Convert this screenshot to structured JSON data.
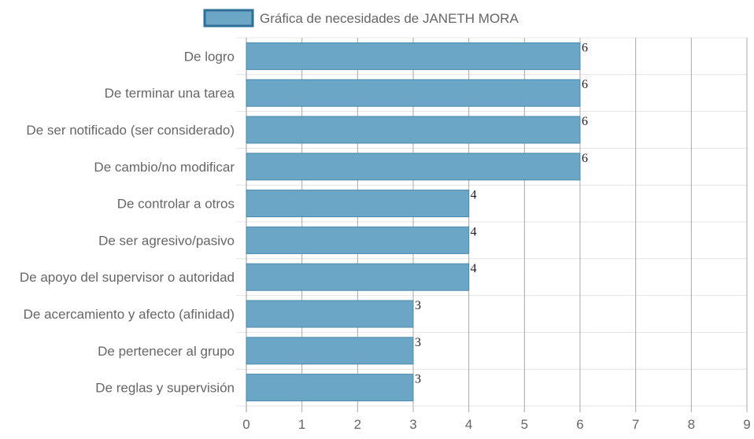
{
  "chart_data": {
    "type": "bar",
    "orientation": "horizontal",
    "categories": [
      "De logro",
      "De terminar una tarea",
      "De ser notificado (ser considerado)",
      "De cambio/no modificar",
      "De controlar a otros",
      "De ser agresivo/pasivo",
      "De apoyo del supervisor o autoridad",
      "De acercamiento y afecto (afinidad)",
      "De pertenecer al grupo",
      "De reglas y supervisión"
    ],
    "series": [
      {
        "name": "Gráfica de necesidades de JANETH MORA",
        "values": [
          6,
          6,
          6,
          6,
          4,
          4,
          4,
          3,
          3,
          3
        ]
      }
    ],
    "xlim": [
      0,
      9
    ],
    "x_ticks": [
      "0",
      "1",
      "2",
      "3",
      "4",
      "5",
      "6",
      "7",
      "8",
      "9"
    ],
    "grid": true,
    "legend_position": "top-center",
    "bar_color": "#6ba6c6",
    "bar_border_color": "#4a89ad",
    "legend_fill": "#6ba6c6",
    "legend_border": "#2f6f98"
  }
}
